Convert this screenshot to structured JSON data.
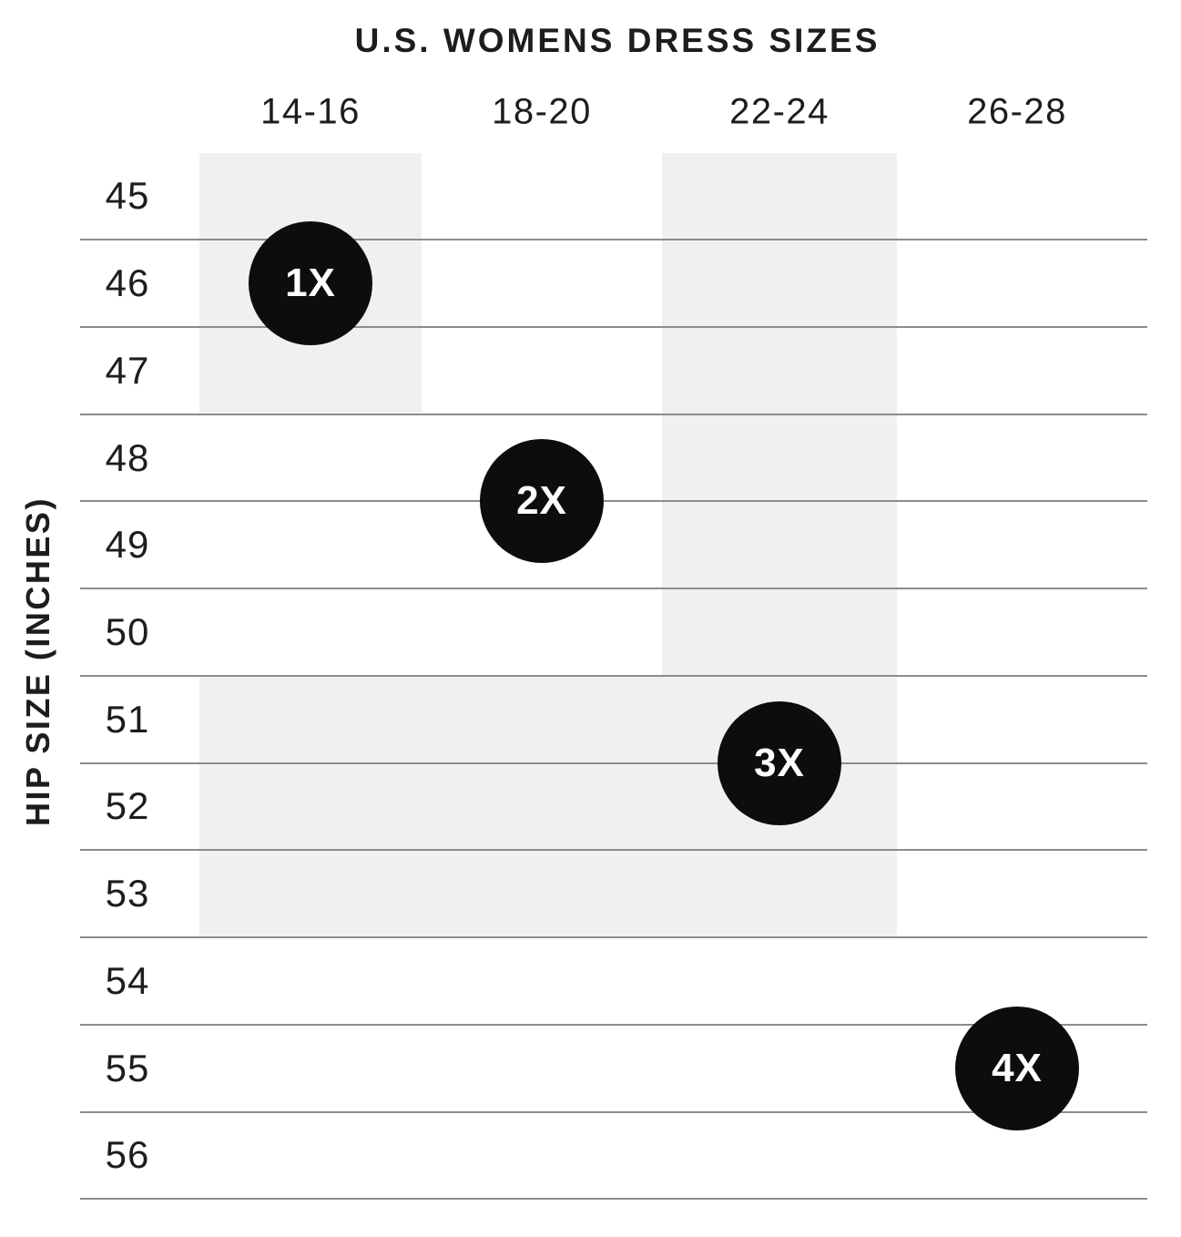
{
  "chart_data": {
    "type": "scatter",
    "title": "U.S. WOMENS DRESS SIZES",
    "xlabel": "",
    "ylabel": "HIP SIZE (INCHES)",
    "x_categories": [
      "14-16",
      "18-20",
      "22-24",
      "26-28"
    ],
    "y_ticks": [
      45,
      46,
      47,
      48,
      49,
      50,
      51,
      52,
      53,
      54,
      55,
      56
    ],
    "y_range": [
      44.5,
      56.5
    ],
    "grid": "horizontal line below each hip-size row, no vertical lines, no top line",
    "legend": "none",
    "markers": [
      {
        "label": "1X",
        "dress_sizes": "14-16",
        "hip": 46
      },
      {
        "label": "2X",
        "dress_sizes": "18-20",
        "hip": 48.5
      },
      {
        "label": "3X",
        "dress_sizes": "22-24",
        "hip": 51.5
      },
      {
        "label": "4X",
        "dress_sizes": "26-28",
        "hip": 55
      }
    ],
    "shaded_regions": [
      {
        "dress_sizes_from": "14-16",
        "dress_sizes_to": "14-16",
        "hip_from": 45,
        "hip_to": 47
      },
      {
        "dress_sizes_from": "22-24",
        "dress_sizes_to": "22-24",
        "hip_from": 45,
        "hip_to": 50
      },
      {
        "dress_sizes_from": "14-16",
        "dress_sizes_to": "22-24",
        "hip_from": 51,
        "hip_to": 53
      }
    ],
    "colors": {
      "background": "#ffffff",
      "band": "#f0f0ef",
      "gridline": "#8c8c8c",
      "text": "#1d1d1b",
      "marker_fill": "#0d0d0d",
      "marker_text": "#ffffff"
    }
  }
}
